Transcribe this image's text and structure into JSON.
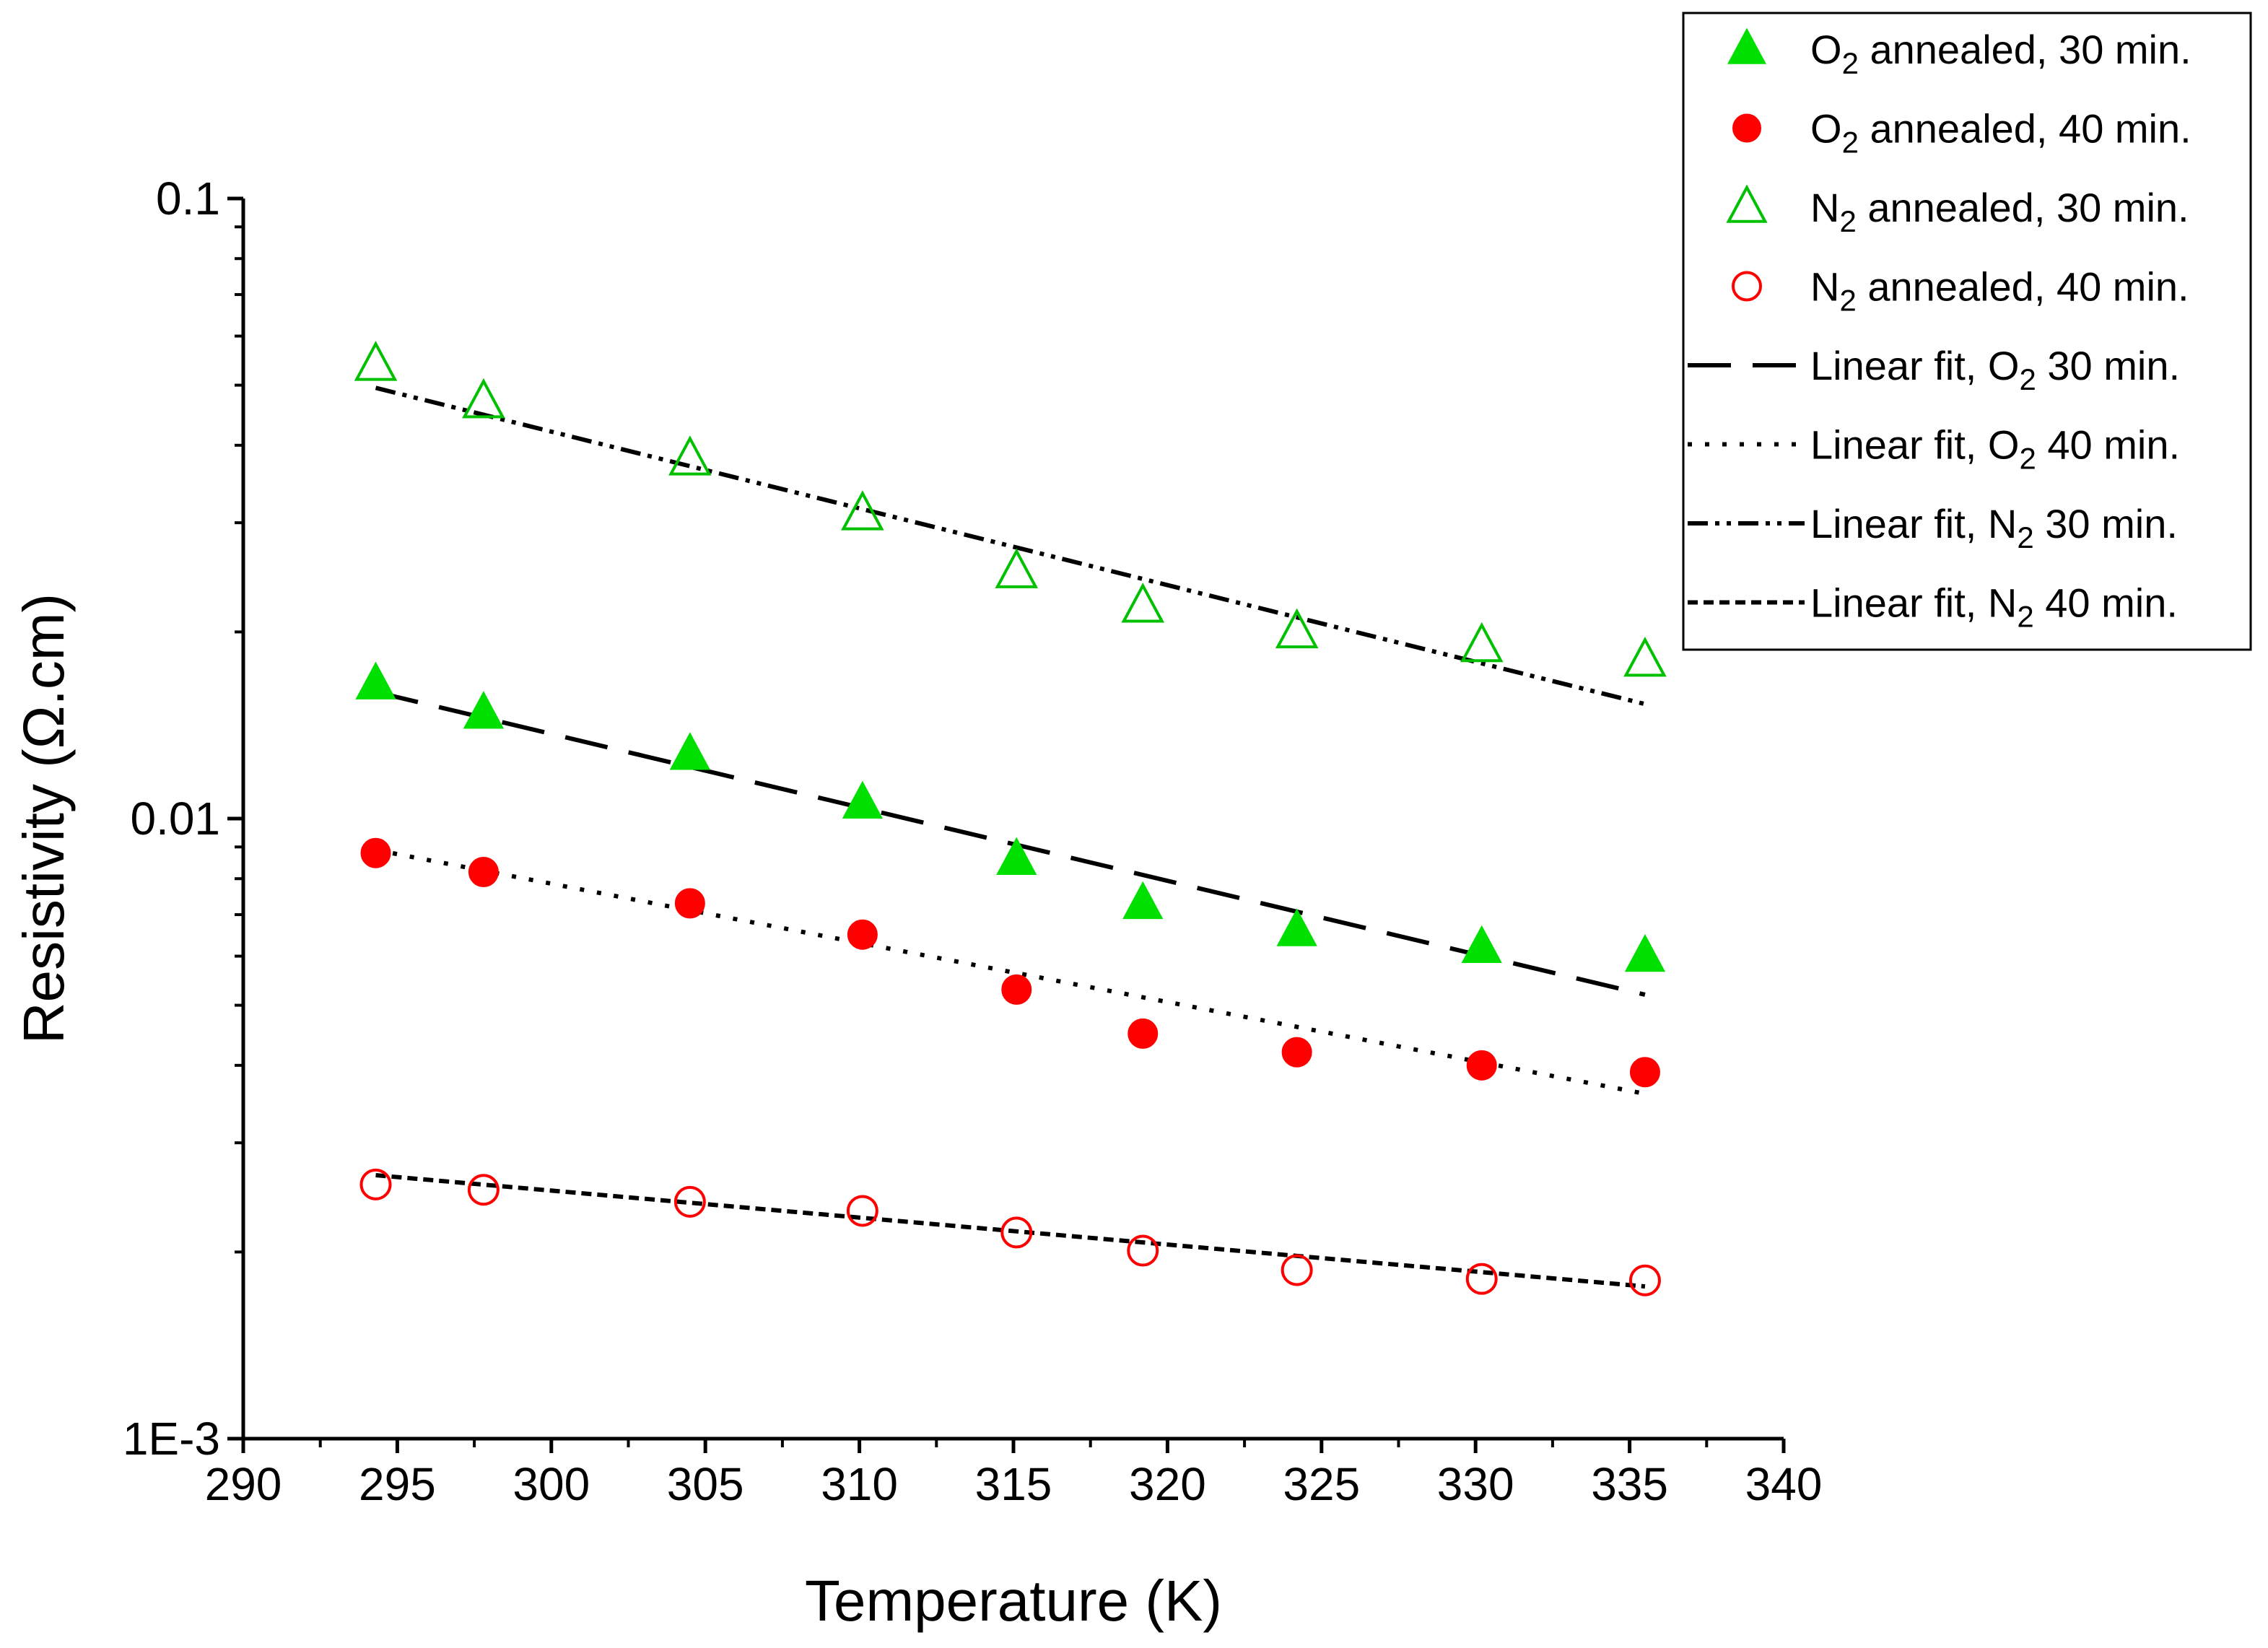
{
  "chart_data": {
    "type": "scatter",
    "title": "",
    "xlabel": "Temperature (K)",
    "ylabel": "Resistivity (Ω.cm)",
    "xlim": [
      290,
      340
    ],
    "ylim": [
      0.001,
      0.1
    ],
    "yscale": "log",
    "xticks": [
      290,
      295,
      300,
      305,
      310,
      315,
      320,
      325,
      330,
      335,
      340
    ],
    "xtick_labels": [
      "290",
      "295",
      "300",
      "305",
      "310",
      "315",
      "320",
      "325",
      "330",
      "335",
      "340"
    ],
    "yticks": [
      0.001,
      0.01,
      0.1
    ],
    "ytick_labels": [
      "1E-3",
      "0.01",
      "0.1"
    ],
    "grid": false,
    "legend_position": "top-right",
    "series": [
      {
        "name": "O2 annealed, 30 min.",
        "legend_main": "O",
        "legend_sub": "2",
        "legend_rest": " annealed, 30 min.",
        "marker": "triangle",
        "filled": true,
        "color": "#00e000",
        "x": [
          294.3,
          297.8,
          304.5,
          310.1,
          315.1,
          319.2,
          324.2,
          330.2,
          335.5
        ],
        "y": [
          0.0165,
          0.0148,
          0.0127,
          0.0106,
          0.0086,
          0.0073,
          0.0066,
          0.0062,
          0.006
        ]
      },
      {
        "name": "O2 annealed, 40 min.",
        "legend_main": "O",
        "legend_sub": "2",
        "legend_rest": " annealed, 40 min.",
        "marker": "circle",
        "filled": true,
        "color": "#ff0000",
        "x": [
          294.3,
          297.8,
          304.5,
          310.1,
          315.1,
          319.2,
          324.2,
          330.2,
          335.5
        ],
        "y": [
          0.0088,
          0.0082,
          0.0073,
          0.0065,
          0.0053,
          0.0045,
          0.0042,
          0.004,
          0.0039
        ]
      },
      {
        "name": "N2 annealed, 30 min.",
        "legend_main": "N",
        "legend_sub": "2",
        "legend_rest": " annealed, 30 min.",
        "marker": "triangle",
        "filled": false,
        "color": "#00c000",
        "x": [
          294.3,
          297.8,
          304.5,
          310.1,
          315.1,
          319.2,
          324.2,
          330.2,
          335.5
        ],
        "y": [
          0.054,
          0.047,
          0.038,
          0.031,
          0.025,
          0.022,
          0.02,
          0.019,
          0.018
        ]
      },
      {
        "name": "N2 annealed, 40 min.",
        "legend_main": "N",
        "legend_sub": "2",
        "legend_rest": " annealed, 40 min.",
        "marker": "circle",
        "filled": false,
        "color": "#ff0000",
        "x": [
          294.3,
          297.8,
          304.5,
          310.1,
          315.1,
          319.2,
          324.2,
          330.2,
          335.5
        ],
        "y": [
          0.00257,
          0.00252,
          0.00241,
          0.00233,
          0.00215,
          0.00201,
          0.00187,
          0.00181,
          0.0018
        ]
      }
    ],
    "fits": [
      {
        "name": "Linear fit, O2 30 min.",
        "legend_main": "Linear fit, O",
        "legend_sub": "2",
        "legend_rest": " 30 min.",
        "dash": "60 30",
        "color": "#000000",
        "x": [
          294.3,
          335.5
        ],
        "y": [
          0.016,
          0.0052
        ]
      },
      {
        "name": "Linear fit, O2 40 min.",
        "legend_main": "Linear fit, O",
        "legend_sub": "2",
        "legend_rest": " 40 min.",
        "dash": "6 18",
        "color": "#000000",
        "x": [
          294.3,
          335.5
        ],
        "y": [
          0.0089,
          0.0036
        ]
      },
      {
        "name": "Linear fit, N2 30 min.",
        "legend_main": "Linear fit, N",
        "legend_sub": "2",
        "legend_rest": " 30 min.",
        "dash": "28 10 6 10 6 10",
        "color": "#000000",
        "x": [
          294.3,
          335.5
        ],
        "y": [
          0.0495,
          0.0153
        ]
      },
      {
        "name": "Linear fit, N2 40 min.",
        "legend_main": "Linear fit, N",
        "legend_sub": "2",
        "legend_rest": " 40 min.",
        "dash": "14 8",
        "color": "#000000",
        "x": [
          294.3,
          335.5
        ],
        "y": [
          0.00266,
          0.00176
        ]
      }
    ]
  }
}
